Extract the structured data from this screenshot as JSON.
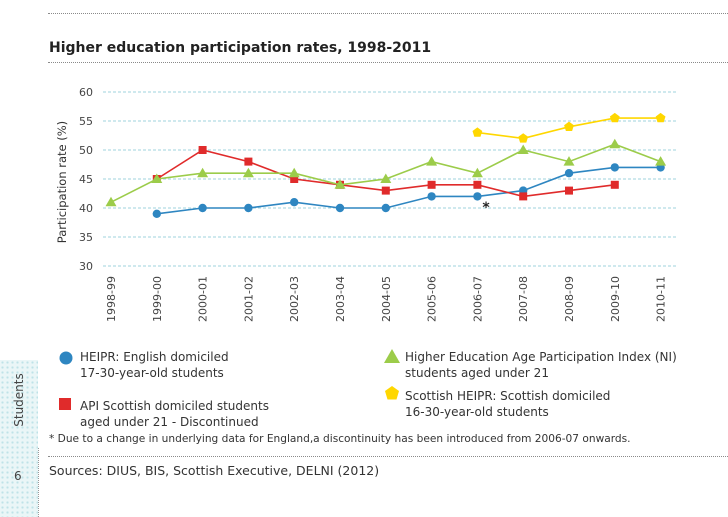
{
  "chart_data": {
    "type": "line",
    "title": "Higher education participation rates, 1998-2011",
    "xlabel": "",
    "ylabel": "Participation rate (%)",
    "ylim": [
      30,
      60
    ],
    "yticks": [
      30,
      35,
      40,
      45,
      50,
      55,
      60
    ],
    "grid": true,
    "categories": [
      "1998-99",
      "1999-00",
      "2000-01",
      "2001-02",
      "2002-03",
      "2003-04",
      "2004-05",
      "2005-06",
      "2006-07",
      "2007-08",
      "2008-09",
      "2009-10",
      "2010-11"
    ],
    "series": [
      {
        "key": "heipr_england",
        "name": "HEIPR: English domiciled 17-30-year-old students",
        "legend_lines": [
          "HEIPR: English domiciled",
          "17-30-year-old students"
        ],
        "color": "#2e86c1",
        "marker": "circle",
        "values": [
          null,
          39,
          40,
          40,
          41,
          40,
          40,
          42,
          42,
          43,
          46,
          47,
          47
        ]
      },
      {
        "key": "api_scotland",
        "name": "API Scottish domiciled students aged under 21 - Discontinued",
        "legend_lines": [
          "API Scottish domiciled students",
          "aged under 21 - Discontinued"
        ],
        "color": "#e02b2b",
        "marker": "square",
        "values": [
          null,
          45,
          50,
          48,
          45,
          44,
          43,
          44,
          44,
          42,
          43,
          44,
          null
        ]
      },
      {
        "key": "ni_api",
        "name": "Higher Education Age Participation Index (NI) students aged under 21",
        "legend_lines": [
          "Higher Education Age Participation Index (NI)",
          "students aged under 21"
        ],
        "color": "#9ccc4a",
        "marker": "triangle",
        "values": [
          41,
          45,
          46,
          46,
          46,
          44,
          45,
          48,
          46,
          50,
          48,
          51,
          48
        ]
      },
      {
        "key": "heipr_scotland",
        "name": "Scottish HEIPR: Scottish domiciled 16-30-year-old students",
        "legend_lines": [
          "Scottish HEIPR: Scottish domiciled",
          "16-30-year-old students"
        ],
        "color": "#ffd700",
        "marker": "pentagon",
        "values": [
          null,
          null,
          null,
          null,
          null,
          null,
          null,
          null,
          53,
          52,
          54,
          55.5,
          55.5
        ]
      }
    ],
    "annotations": [
      {
        "text": "*",
        "category": "2006-07",
        "value": 40.5
      }
    ]
  },
  "footnote": "* Due to a change in underlying data for England,a discontinuity has been introduced from 2006-07 onwards.",
  "sources": "Sources: DIUS, BIS, Scottish Executive, DELNI (2012)",
  "side_label": "Students",
  "page_number": "6",
  "colors": {
    "side_strip": "#eaf6f7",
    "grid": "#9fd3dc"
  }
}
